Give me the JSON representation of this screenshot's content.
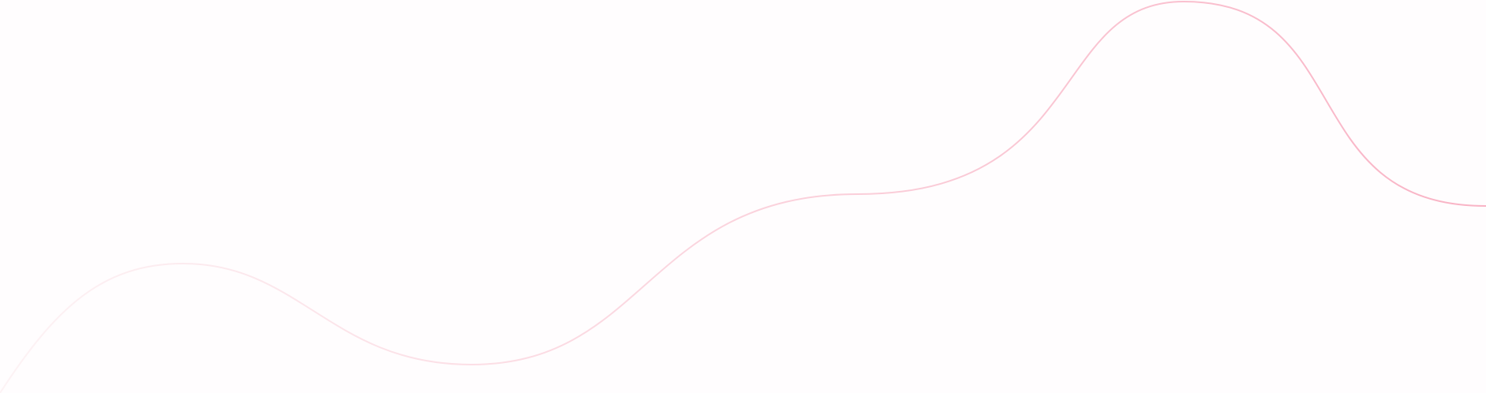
{
  "colors": {
    "background": "#fffdfe",
    "line_start": "#fdf3f5",
    "line_end": "#f9b3c5"
  }
}
